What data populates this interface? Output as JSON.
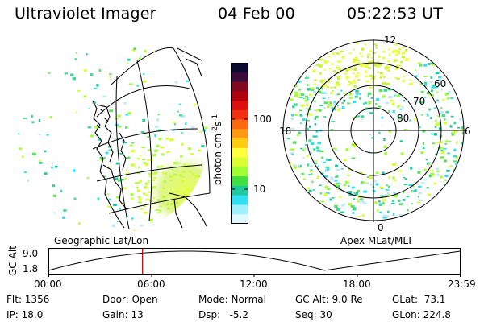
{
  "header": {
    "instrument": "Ultraviolet Imager",
    "date": "04 Feb 00",
    "time": "05:22:53 UT"
  },
  "colorbar": {
    "label": "photon cm",
    "label_sup1": "-2",
    "label_mid": "s",
    "label_sup2": "-1",
    "ticks": [
      "100",
      "10"
    ],
    "colors": [
      "#0a0a33",
      "#3a0a3a",
      "#800820",
      "#b00010",
      "#dd1010",
      "#f03010",
      "#ff6a10",
      "#ff9a10",
      "#ffcc10",
      "#ffff40",
      "#d8ff30",
      "#a0ff30",
      "#40e040",
      "#20c8a0",
      "#30e0f0",
      "#a0f0ff",
      "#e0f8ff"
    ]
  },
  "panels": {
    "left_label": "Geographic Lat/Lon",
    "right_label": "Apex MLat/MLT",
    "polar_labels": {
      "top": "12",
      "left": "18",
      "right": "6",
      "bottom": "0",
      "ring60": "60",
      "ring70": "70",
      "ring80": "80"
    }
  },
  "altitude_track": {
    "axis_label": "GC Alt",
    "ymax": "9.0",
    "ymin": "1.8",
    "current_time_fraction": 0.2277,
    "x_ticks": [
      "00:00",
      "06:00",
      "12:00",
      "18:00",
      "23:59"
    ]
  },
  "info": {
    "flt": "Flt: 1356",
    "ip": "IP: 18.0",
    "door": "Door: Open",
    "gain": "Gain: 13",
    "mode": "Mode: Normal",
    "dsp": "Dsp:   -5.2",
    "gcalt": "GC Alt: 9.0 Re",
    "seq": "Seq: 30",
    "glat": "GLat:  73.1",
    "glon": "GLon: 224.8"
  }
}
